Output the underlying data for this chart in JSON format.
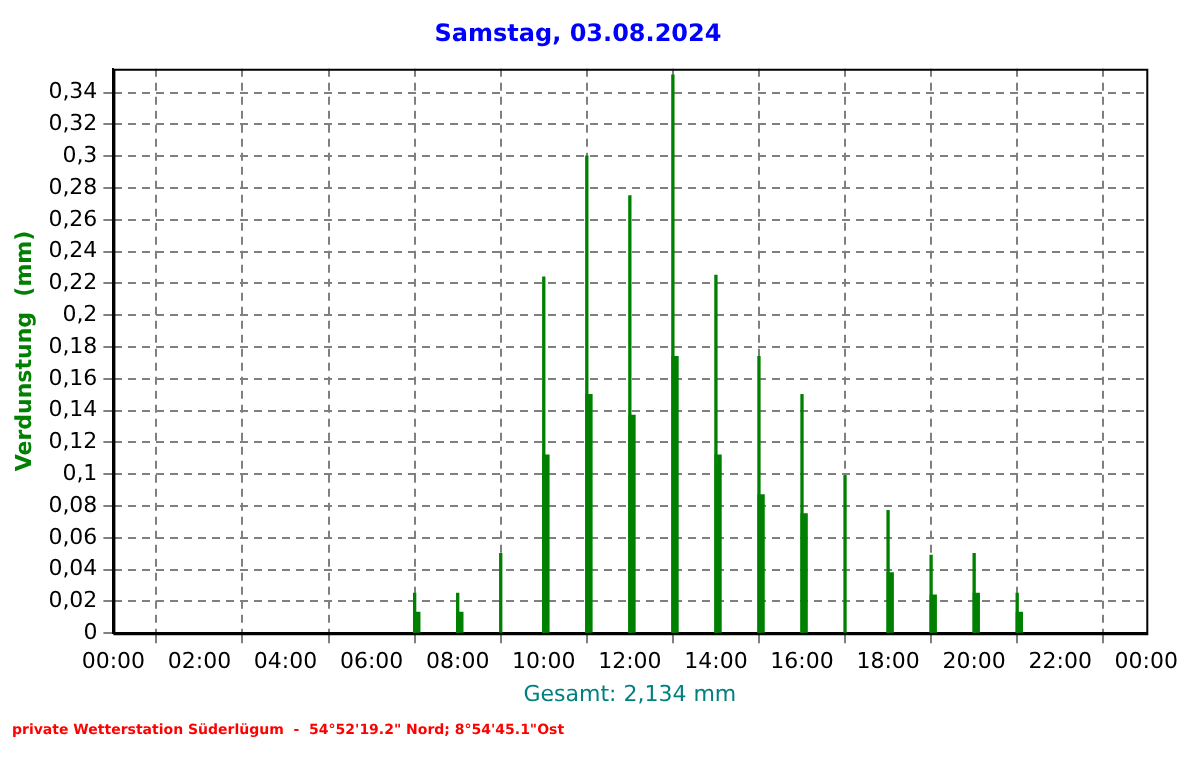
{
  "chart_data": {
    "type": "bar",
    "title": "Samstag, 03.08.2024",
    "xlabel": "Gesamt: 2,134 mm",
    "ylabel": "Verdunstung  (mm)",
    "annotations": [
      "private Wetterstation Süderlügum  -  54°52'19.2\" Nord; 8°54'45.1\"Ost"
    ],
    "series": [
      {
        "color": "#008000",
        "x": [
          7,
          8,
          9,
          10,
          11,
          12,
          13,
          14,
          15,
          16,
          17,
          18,
          19,
          20,
          21
        ],
        "values": [
          0.025,
          0.025,
          0.05,
          0.224,
          0.3,
          0.275,
          0.351,
          0.225,
          0.174,
          0.15,
          0.099,
          0.077,
          0.049,
          0.05,
          0.025
        ]
      },
      {
        "color": "#008000",
        "x": [
          7.05,
          8.05,
          9.05,
          10.05,
          11.05,
          12.05,
          13.05,
          14.05,
          15.05,
          16.05,
          17.05,
          18.05,
          19.05,
          20.05,
          21.05
        ],
        "values": [
          0.013,
          0.013,
          null,
          0.112,
          0.15,
          0.137,
          0.174,
          0.112,
          0.087,
          0.075,
          null,
          0.038,
          0.024,
          0.025,
          0.013
        ]
      }
    ],
    "xlim": [
      0,
      24
    ],
    "xticks": [
      {
        "value": 0,
        "label": "00:00"
      },
      {
        "value": 2,
        "label": "02:00"
      },
      {
        "value": 4,
        "label": "04:00"
      },
      {
        "value": 6,
        "label": "06:00"
      },
      {
        "value": 8,
        "label": "08:00"
      },
      {
        "value": 10,
        "label": "10:00"
      },
      {
        "value": 12,
        "label": "12:00"
      },
      {
        "value": 14,
        "label": "14:00"
      },
      {
        "value": 16,
        "label": "16:00"
      },
      {
        "value": 18,
        "label": "18:00"
      },
      {
        "value": 20,
        "label": "20:00"
      },
      {
        "value": 22,
        "label": "22:00"
      },
      {
        "value": 24,
        "label": "00:00"
      }
    ],
    "ylim": [
      0,
      0.355
    ],
    "yticks": [
      0,
      {
        "value": 0.02,
        "label": "0,02"
      },
      {
        "value": 0.04,
        "label": "0,04"
      },
      {
        "value": 0.06,
        "label": "0,06"
      },
      {
        "value": 0.08,
        "label": "0,08"
      },
      {
        "value": 0.1,
        "label": "0,1"
      },
      {
        "value": 0.12,
        "label": "0,12"
      },
      {
        "value": 0.14,
        "label": "0,14"
      },
      {
        "value": 0.16,
        "label": "0,16"
      },
      {
        "value": 0.18,
        "label": "0,18"
      },
      {
        "value": 0.2,
        "label": "0,2"
      },
      {
        "value": 0.22,
        "label": "0,22"
      },
      {
        "value": 0.24,
        "label": "0,24"
      },
      {
        "value": 0.26,
        "label": "0,26"
      },
      {
        "value": 0.28,
        "label": "0,28"
      },
      {
        "value": 0.3,
        "label": "0,3"
      },
      {
        "value": 0.32,
        "label": "0,32"
      },
      {
        "value": 0.34,
        "label": "0,34"
      }
    ],
    "grid": true,
    "legend": false
  }
}
